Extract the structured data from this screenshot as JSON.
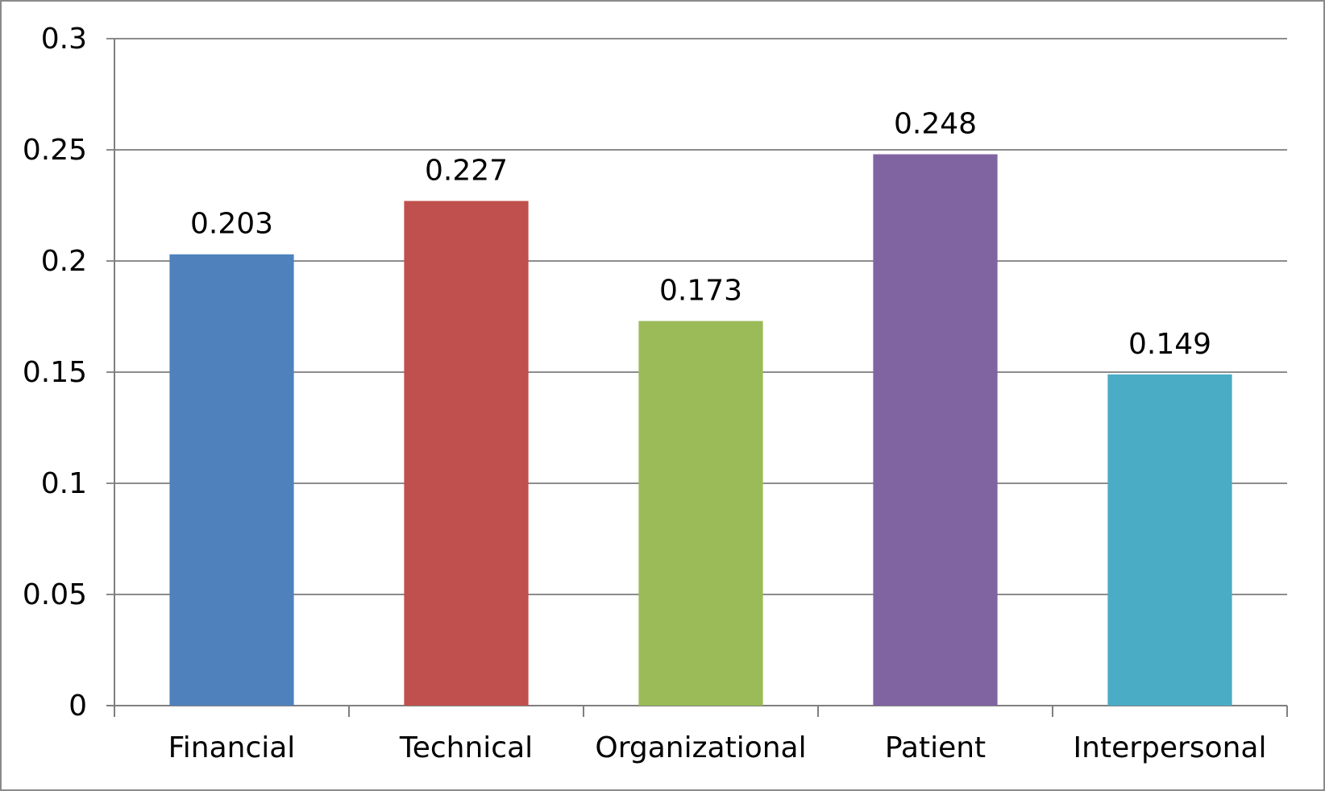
{
  "chart_data": {
    "type": "bar",
    "categories": [
      "Financial",
      "Technical",
      "Organizational",
      "Patient",
      "Interpersonal"
    ],
    "values": [
      0.203,
      0.227,
      0.173,
      0.248,
      0.149
    ],
    "data_labels": [
      "0.203",
      "0.227",
      "0.173",
      "0.248",
      "0.149"
    ],
    "colors": [
      "#4f81bd",
      "#c0504d",
      "#9bbb59",
      "#8064a2",
      "#4bacc6"
    ],
    "yticks": [
      "0",
      "0.05",
      "0.1",
      "0.15",
      "0.2",
      "0.25",
      "0.3"
    ],
    "ylim": [
      0,
      0.3
    ],
    "grid": true,
    "legend": "none",
    "title": "",
    "xlabel": "",
    "ylabel": ""
  }
}
